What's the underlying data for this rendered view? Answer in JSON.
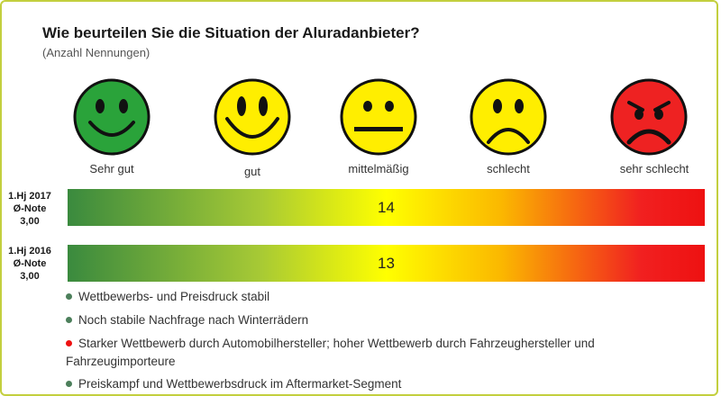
{
  "chart_data": {
    "type": "rating-scale",
    "title": "Wie beurteilen Sie die Situation der Aluradanbieter?",
    "subtitle": "(Anzahl Nennungen)",
    "categories": [
      "Sehr gut",
      "gut",
      "mittelmäßig",
      "schlecht",
      "sehr schlecht"
    ],
    "category_colors": [
      "#2aa33a",
      "#ffee00",
      "#ffee00",
      "#ffee00",
      "#ee2222"
    ],
    "rows": [
      {
        "period": "1.Hj 2017",
        "avg_label": "Ø-Note",
        "avg_value": "3,00",
        "count": "14"
      },
      {
        "period": "1.Hj 2016",
        "avg_label": "Ø-Note",
        "avg_value": "3,00",
        "count": "13"
      }
    ],
    "scale_gradient": [
      "#3a8a3e",
      "#a6c935",
      "#ffff00",
      "#fbb800",
      "#f12020"
    ]
  },
  "notes": [
    {
      "text": "Wettbewerbs- und Preisdruck stabil",
      "color": "#4c7f5b"
    },
    {
      "text": "Noch stabile Nachfrage nach Winterrädern",
      "color": "#4c7f5b"
    },
    {
      "text": "Starker Wettbewerb durch Automobilhersteller; hoher Wettbewerb durch Fahrzeughersteller und",
      "color": "#ee1111"
    },
    {
      "text": "Fahrzeugimporteure",
      "color": ""
    },
    {
      "text": "Preiskampf und Wettbewerbsdruck im Aftermarket-Segment",
      "color": "#4c7f5b"
    }
  ]
}
